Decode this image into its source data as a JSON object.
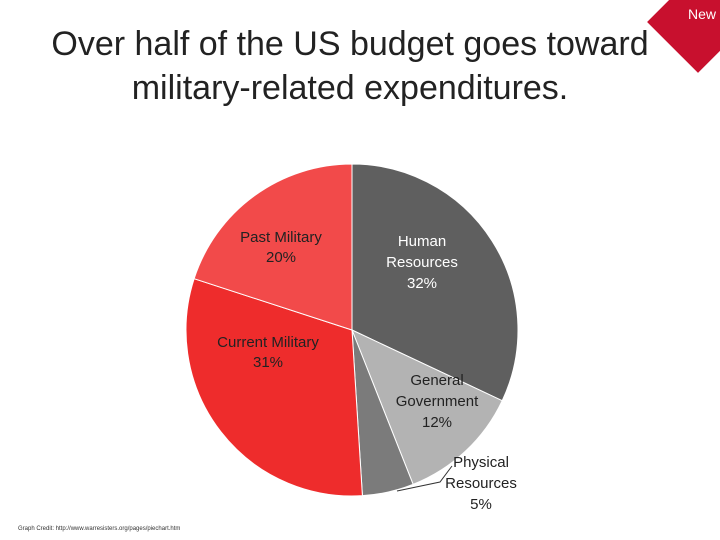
{
  "badge": {
    "label": "New"
  },
  "slide": {
    "title_line1": "Over half of the US budget goes toward",
    "title_line2": "military-related expenditures.",
    "credit": "Graph Credit: http://www.warresisters.org/pages/piechart.htm"
  },
  "chart_data": {
    "type": "pie",
    "title": "Over half of the US budget goes toward military-related expenditures.",
    "slices": [
      {
        "name": "Human Resources",
        "value": 32,
        "label_lines": [
          "Human",
          "Resources",
          "32%"
        ],
        "color": "#5f5f5f",
        "label_color": "#ffffff"
      },
      {
        "name": "General Government",
        "value": 12,
        "label_lines": [
          "General",
          "Government",
          "12%"
        ],
        "color": "#b3b3b3",
        "label_color": "#222222"
      },
      {
        "name": "Physical Resources",
        "value": 5,
        "label_lines": [
          "Physical",
          "Resources",
          "5%"
        ],
        "color": "#7b7b7b",
        "label_color": "#222222"
      },
      {
        "name": "Current Military",
        "value": 31,
        "label_lines": [
          "Current Military",
          "31%"
        ],
        "color": "#ee2c2c",
        "label_color": "#222222"
      },
      {
        "name": "Past Military",
        "value": 20,
        "label_lines": [
          "Past Military",
          "20%"
        ],
        "color": "#f24a4a",
        "label_color": "#222222"
      }
    ]
  }
}
